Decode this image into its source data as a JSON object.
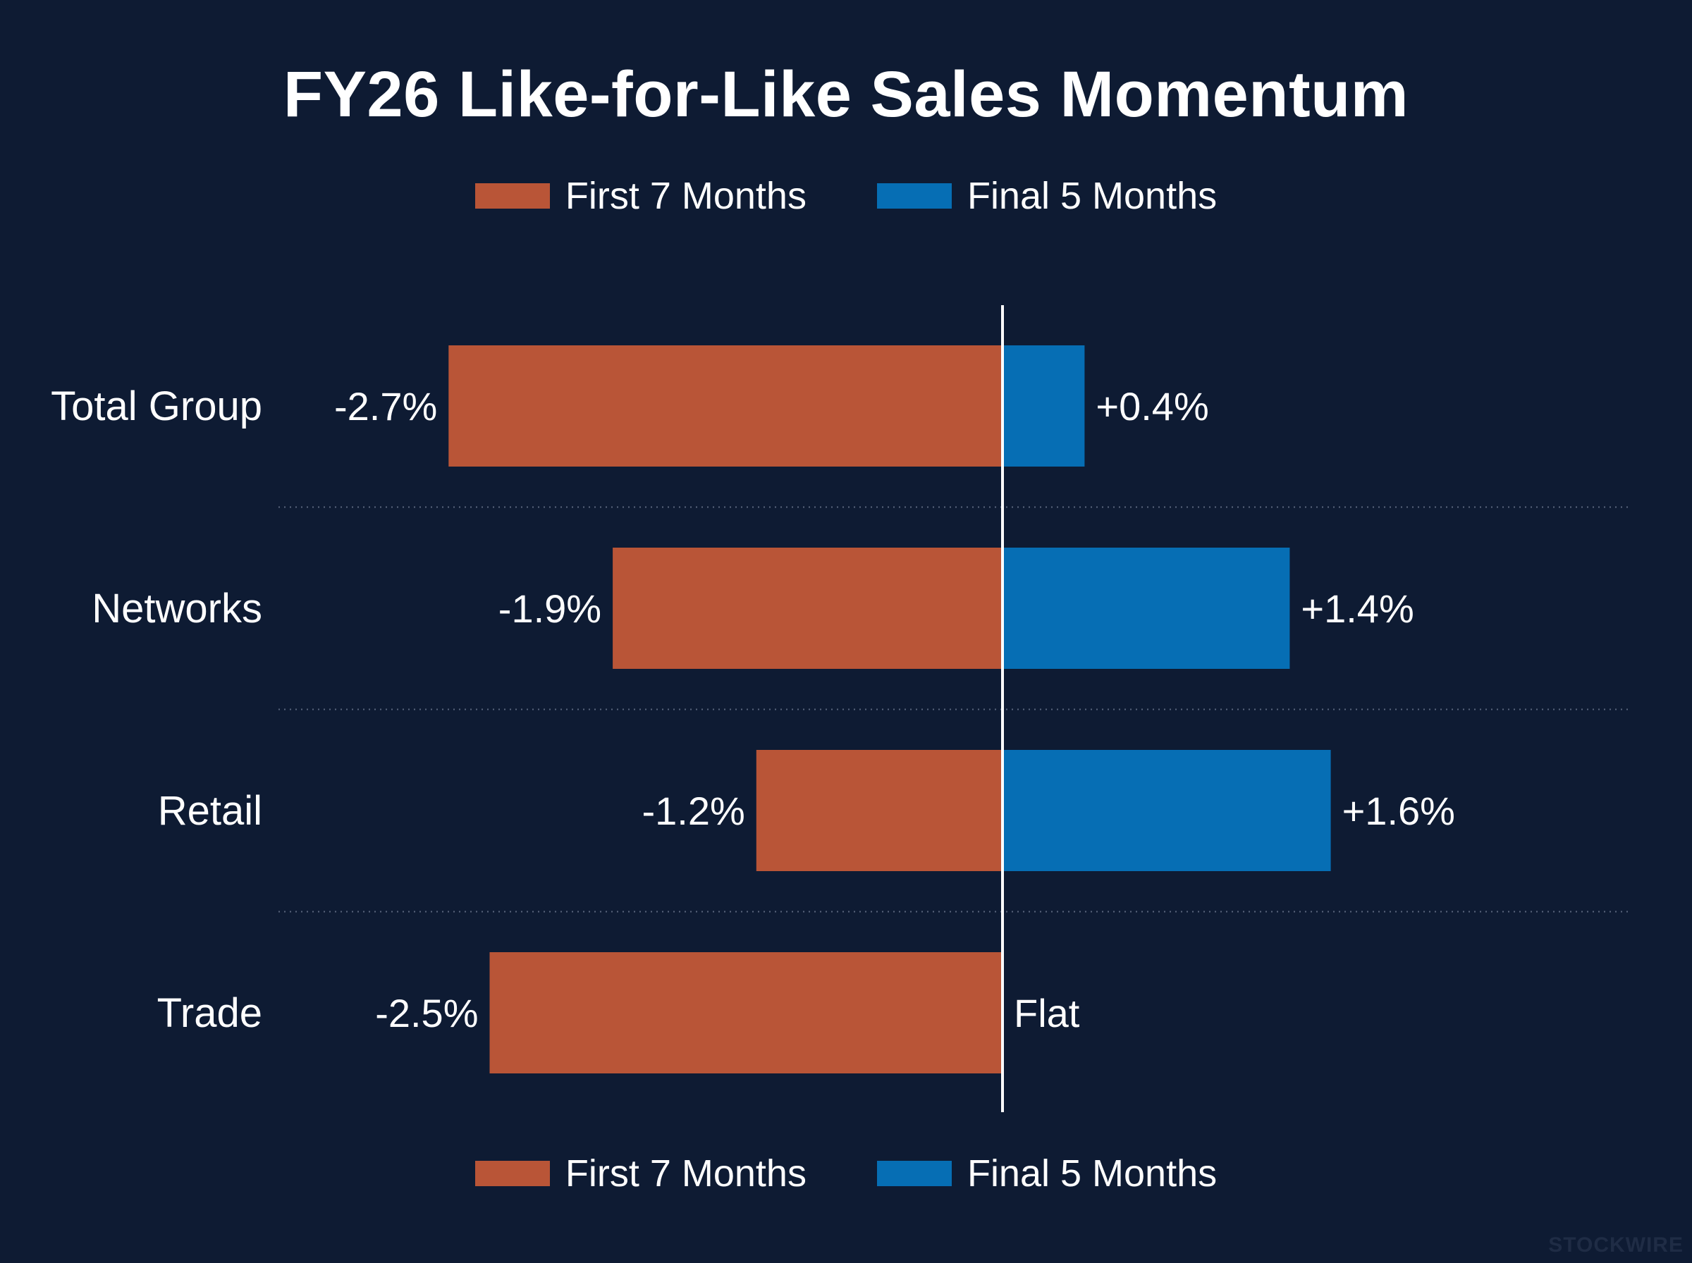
{
  "title": "FY26 Like-for-Like Sales Momentum",
  "legend": [
    {
      "label": "First 7 Months",
      "color": "#b95537"
    },
    {
      "label": "Final 5 Months",
      "color": "#066eb4"
    }
  ],
  "watermark": "STOCKWIRE",
  "colors": {
    "background": "#0e1b33",
    "axis": "#ffffff",
    "gridline": "#5a667d",
    "text": "#ffffff"
  },
  "chart_data": {
    "type": "bar",
    "orientation": "horizontal-diverging",
    "title": "FY26 Like-for-Like Sales Momentum",
    "categories": [
      "Total Group",
      "Networks",
      "Retail",
      "Trade"
    ],
    "series": [
      {
        "name": "First 7 Months",
        "values": [
          -2.7,
          -1.9,
          -1.2,
          -2.5
        ],
        "labels": [
          "-2.7%",
          "-1.9%",
          "-1.2%",
          "-2.5%"
        ]
      },
      {
        "name": "Final 5 Months",
        "values": [
          0.4,
          1.4,
          1.6,
          0.0
        ],
        "labels": [
          "+0.4%",
          "+1.4%",
          "+1.6%",
          "Flat"
        ]
      }
    ],
    "xlim": [
      -3.8,
      3.0
    ],
    "xlabel": "",
    "ylabel": "",
    "grid": "dotted separators between categories",
    "legend_position": "top and bottom center"
  }
}
